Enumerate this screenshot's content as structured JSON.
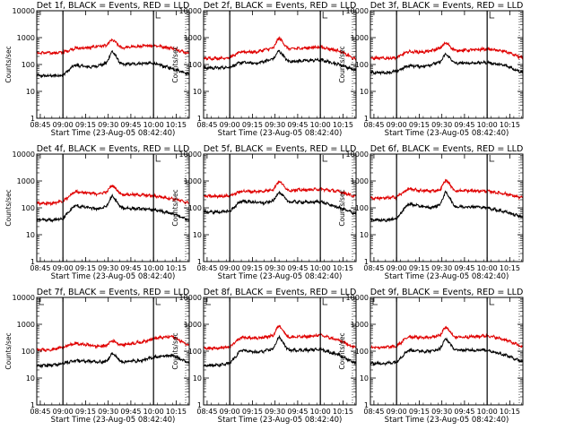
{
  "figure": {
    "start_time_label": "Start Time (23-Aug-05 08:42:40)",
    "ylabel": "Counts/sec",
    "x_tick_labels": [
      "08:45",
      "09:00",
      "09:15",
      "09:30",
      "09:45",
      "10:00",
      "10:15"
    ],
    "y_tick_labels": [
      "1",
      "10",
      "100",
      "1000",
      "10000"
    ],
    "colors": {
      "events": "#000000",
      "lld": "#e00000",
      "axes": "#000000"
    }
  },
  "chart_data": [
    {
      "type": "line",
      "title": "Det 1f, BLACK = Events, RED = LLD",
      "xlabel": "Start Time (23-Aug-05 08:42:40)",
      "ylabel": "Counts/sec",
      "x_unit": "minutes after 08:42:40",
      "xlim": [
        0,
        101
      ],
      "ylim": [
        1,
        10000
      ],
      "yscale": "log",
      "vlines": [
        "09:00",
        "10:00"
      ],
      "flare_peak": "09:29",
      "x": [
        0,
        10,
        17.3,
        25,
        35,
        40,
        46,
        50,
        56,
        70,
        77.3,
        90,
        101
      ],
      "series": [
        {
          "name": "Events",
          "values": [
            38,
            38,
            40,
            95,
            80,
            90,
            110,
            320,
            100,
            110,
            110,
            70,
            45
          ]
        },
        {
          "name": "LLD",
          "values": [
            270,
            270,
            280,
            400,
            420,
            480,
            500,
            850,
            420,
            480,
            520,
            400,
            260
          ]
        }
      ]
    },
    {
      "type": "line",
      "title": "Det 2f, BLACK = Events, RED = LLD",
      "xlabel": "Start Time (23-Aug-05 08:42:40)",
      "ylabel": "Counts/sec",
      "x_unit": "minutes after 08:42:40",
      "xlim": [
        0,
        101
      ],
      "ylim": [
        1,
        10000
      ],
      "yscale": "log",
      "vlines": [
        "09:00",
        "10:00"
      ],
      "flare_peak": "09:29",
      "x": [
        0,
        10,
        17.3,
        25,
        35,
        40,
        46,
        50,
        56,
        70,
        77.3,
        90,
        101
      ],
      "series": [
        {
          "name": "Events",
          "values": [
            75,
            75,
            80,
            120,
            110,
            130,
            160,
            330,
            130,
            140,
            150,
            100,
            60
          ]
        },
        {
          "name": "LLD",
          "values": [
            170,
            170,
            180,
            300,
            290,
            350,
            400,
            1000,
            380,
            420,
            450,
            320,
            150
          ]
        }
      ]
    },
    {
      "type": "line",
      "title": "Det 3f, BLACK = Events, RED = LLD",
      "xlabel": "Start Time (23-Aug-05 08:42:40)",
      "ylabel": "Counts/sec",
      "x_unit": "minutes after 08:42:40",
      "xlim": [
        0,
        101
      ],
      "ylim": [
        1,
        10000
      ],
      "yscale": "log",
      "vlines": [
        "09:00",
        "10:00"
      ],
      "flare_peak": "09:29",
      "x": [
        0,
        10,
        17.3,
        25,
        35,
        40,
        46,
        50,
        56,
        70,
        77.3,
        90,
        101
      ],
      "series": [
        {
          "name": "Events",
          "values": [
            50,
            50,
            55,
            90,
            85,
            100,
            120,
            250,
            110,
            115,
            120,
            90,
            50
          ]
        },
        {
          "name": "LLD",
          "values": [
            170,
            170,
            180,
            300,
            290,
            320,
            400,
            650,
            330,
            350,
            380,
            300,
            170
          ]
        }
      ]
    },
    {
      "type": "line",
      "title": "Det 4f, BLACK = Events, RED = LLD",
      "xlabel": "Start Time (23-Aug-05 08:42:40)",
      "ylabel": "Counts/sec",
      "x_unit": "minutes after 08:42:40",
      "xlim": [
        0,
        101
      ],
      "ylim": [
        1,
        10000
      ],
      "yscale": "log",
      "vlines": [
        "09:00",
        "10:00"
      ],
      "flare_peak": "09:29",
      "x": [
        0,
        10,
        17.3,
        25,
        35,
        40,
        46,
        50,
        56,
        70,
        77.3,
        90,
        101
      ],
      "series": [
        {
          "name": "Events",
          "values": [
            35,
            35,
            40,
            120,
            100,
            90,
            110,
            280,
            100,
            90,
            85,
            60,
            35
          ]
        },
        {
          "name": "LLD",
          "values": [
            150,
            150,
            170,
            400,
            350,
            330,
            380,
            700,
            320,
            300,
            280,
            220,
            150
          ]
        }
      ]
    },
    {
      "type": "line",
      "title": "Det 5f, BLACK = Events, RED = LLD",
      "xlabel": "Start Time (23-Aug-05 08:42:40)",
      "ylabel": "Counts/sec",
      "x_unit": "minutes after 08:42:40",
      "xlim": [
        0,
        101
      ],
      "ylim": [
        1,
        10000
      ],
      "yscale": "log",
      "vlines": [
        "09:00",
        "10:00"
      ],
      "flare_peak": "09:29",
      "x": [
        0,
        10,
        17.3,
        25,
        35,
        40,
        46,
        50,
        56,
        70,
        77.3,
        90,
        101
      ],
      "series": [
        {
          "name": "Events",
          "values": [
            70,
            70,
            75,
            180,
            160,
            150,
            180,
            400,
            170,
            160,
            170,
            100,
            60
          ]
        },
        {
          "name": "LLD",
          "values": [
            270,
            270,
            280,
            420,
            400,
            420,
            480,
            1000,
            450,
            470,
            500,
            400,
            260
          ]
        }
      ]
    },
    {
      "type": "line",
      "title": "Det 6f, BLACK = Events, RED = LLD",
      "xlabel": "Start Time (23-Aug-05 08:42:40)",
      "ylabel": "Counts/sec",
      "x_unit": "minutes after 08:42:40",
      "xlim": [
        0,
        101
      ],
      "ylim": [
        1,
        10000
      ],
      "yscale": "log",
      "vlines": [
        "09:00",
        "10:00"
      ],
      "flare_peak": "09:29",
      "x": [
        0,
        10,
        17.3,
        25,
        35,
        40,
        46,
        50,
        56,
        70,
        77.3,
        90,
        101
      ],
      "series": [
        {
          "name": "Events",
          "values": [
            35,
            35,
            40,
            140,
            110,
            100,
            130,
            400,
            110,
            110,
            100,
            70,
            45
          ]
        },
        {
          "name": "LLD",
          "values": [
            230,
            230,
            250,
            500,
            430,
            420,
            460,
            1100,
            430,
            430,
            420,
            330,
            230
          ]
        }
      ]
    },
    {
      "type": "line",
      "title": "Det 7f, BLACK = Events, RED = LLD",
      "xlabel": "Start Time (23-Aug-05 08:42:40)",
      "ylabel": "Counts/sec",
      "x_unit": "minutes after 08:42:40",
      "xlim": [
        0,
        101
      ],
      "ylim": [
        1,
        10000
      ],
      "yscale": "log",
      "vlines": [
        "09:00",
        "10:00"
      ],
      "flare_peak": "09:29",
      "x": [
        0,
        10,
        17.3,
        25,
        35,
        40,
        46,
        50,
        56,
        70,
        77.3,
        90,
        101
      ],
      "series": [
        {
          "name": "Events",
          "values": [
            28,
            30,
            35,
            45,
            42,
            40,
            40,
            85,
            40,
            45,
            60,
            70,
            35
          ]
        },
        {
          "name": "LLD",
          "values": [
            110,
            115,
            140,
            190,
            170,
            150,
            160,
            250,
            170,
            220,
            300,
            350,
            160
          ]
        }
      ]
    },
    {
      "type": "line",
      "title": "Det 8f, BLACK = Events, RED = LLD",
      "xlabel": "Start Time (23-Aug-05 08:42:40)",
      "ylabel": "Counts/sec",
      "x_unit": "minutes after 08:42:40",
      "xlim": [
        0,
        101
      ],
      "ylim": [
        1,
        10000
      ],
      "yscale": "log",
      "vlines": [
        "09:00",
        "10:00"
      ],
      "flare_peak": "09:29",
      "x": [
        0,
        10,
        17.3,
        25,
        35,
        40,
        46,
        50,
        56,
        70,
        77.3,
        90,
        101
      ],
      "series": [
        {
          "name": "Events",
          "values": [
            30,
            30,
            35,
            110,
            90,
            100,
            120,
            350,
            110,
            110,
            120,
            70,
            35
          ]
        },
        {
          "name": "LLD",
          "values": [
            130,
            130,
            140,
            330,
            300,
            330,
            380,
            950,
            330,
            350,
            400,
            250,
            130
          ]
        }
      ]
    },
    {
      "type": "line",
      "title": "Det 9f, BLACK = Events, RED = LLD",
      "xlabel": "Start Time (23-Aug-05 08:42:40)",
      "ylabel": "Counts/sec",
      "x_unit": "minutes after 08:42:40",
      "xlim": [
        0,
        101
      ],
      "ylim": [
        1,
        10000
      ],
      "yscale": "log",
      "vlines": [
        "09:00",
        "10:00"
      ],
      "flare_peak": "09:29",
      "x": [
        0,
        10,
        17.3,
        25,
        35,
        40,
        46,
        50,
        56,
        70,
        77.3,
        90,
        101
      ],
      "series": [
        {
          "name": "Events",
          "values": [
            35,
            35,
            40,
            110,
            100,
            100,
            120,
            300,
            110,
            110,
            110,
            70,
            40
          ]
        },
        {
          "name": "LLD",
          "values": [
            140,
            140,
            150,
            350,
            320,
            330,
            380,
            800,
            330,
            350,
            380,
            260,
            140
          ]
        }
      ]
    }
  ]
}
